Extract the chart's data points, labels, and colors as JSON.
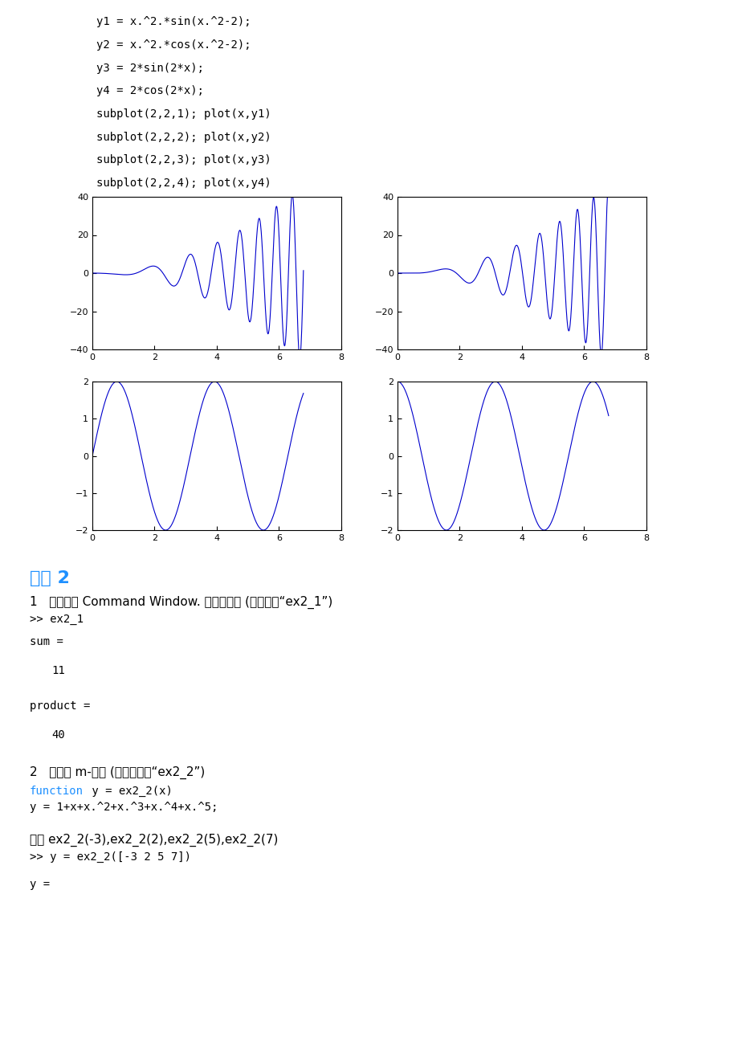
{
  "code_lines_top": [
    "y1 = x.^2.*sin(x.^2-2);",
    "y2 = x.^2.*cos(x.^2-2);",
    "y3 = 2*sin(2*x);",
    "y4 = 2*cos(2*x);",
    "subplot(2,2,1); plot(x,y1)",
    "subplot(2,2,2); plot(x,y2)",
    "subplot(2,2,3); plot(x,y3)",
    "subplot(2,2,4); plot(x,y4)"
  ],
  "section_title": "实验 2",
  "line1_text": "1   结果是在 Command Window. 输出结果是 (文件名是“ex2_1”)",
  "line_ex2_1": ">> ex2_1",
  "line_sum": "sum =",
  "line_11": "   11",
  "line_product": "product =",
  "line_40": "   40",
  "line2_text": "2   函数的 m-文件 (函数名改为“ex2_2”)",
  "line_function_kw": "function",
  "line_function_rest": " y = ex2_2(x)",
  "line_y_def": "y = 1+x+x.^2+x.^3+x.^4+x.^5;",
  "line_calc": "计算 ex2_2(-3),ex2_2(2),ex2_2(5),ex2_2(7)",
  "line_call": ">> y = ex2_2([-3 2 5 7])",
  "line_y_eq": "y =",
  "plot_color": "#0000CD",
  "bg_color": "#FFFFFF",
  "axes_color": "#000000",
  "text_color": "#000000",
  "mono_font_size": 10,
  "code_font_size": 10,
  "section_color": "#1E90FF"
}
